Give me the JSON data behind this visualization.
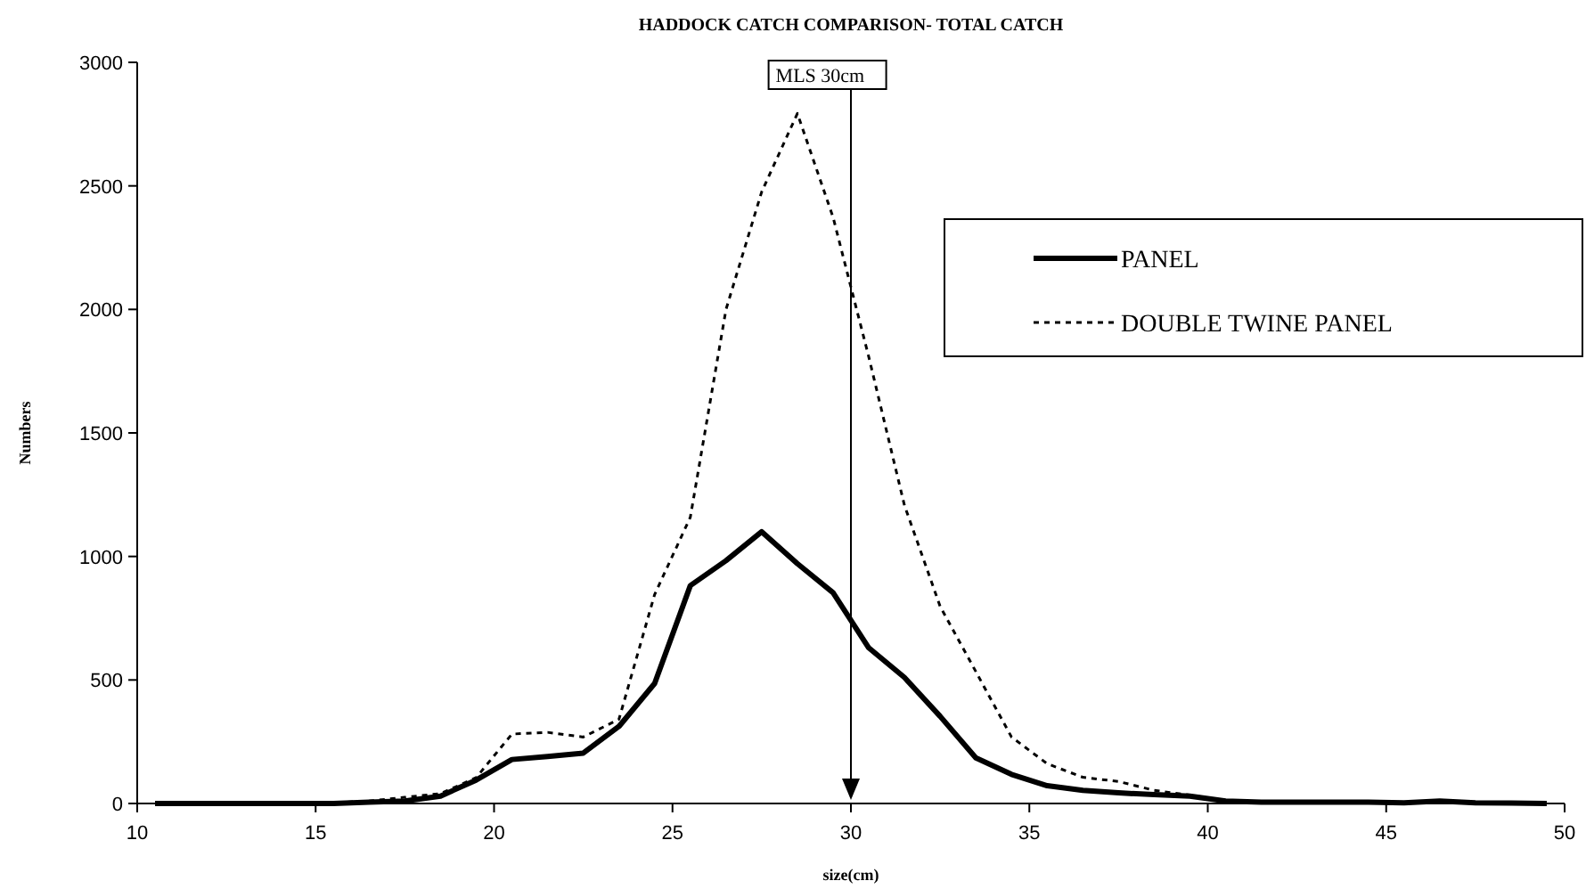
{
  "chart_data": {
    "type": "line",
    "title": "HADDOCK CATCH COMPARISON- TOTAL CATCH",
    "xlabel": "size(cm)",
    "ylabel": "Numbers",
    "x": [
      10.5,
      11.5,
      12.5,
      13.5,
      14.5,
      15.5,
      16.5,
      17.5,
      18.5,
      19.5,
      20.5,
      21.5,
      22.5,
      23.5,
      24.5,
      25.5,
      26.5,
      27.5,
      28.5,
      29.5,
      30.5,
      31.5,
      32.5,
      33.5,
      34.5,
      35.5,
      36.5,
      37.5,
      38.5,
      39.5,
      40.5,
      41.5,
      42.5,
      43.5,
      44.5,
      45.5,
      46.5,
      47.5,
      48.5,
      49.5
    ],
    "series": [
      {
        "name": "PANEL",
        "color": "#000000",
        "line_style": "solid",
        "values": [
          0,
          0,
          0,
          0,
          0,
          0,
          5,
          10,
          30,
          95,
          178,
          190,
          204,
          312,
          486,
          882,
          983,
          1100,
          971,
          853,
          630,
          510,
          353,
          185,
          118,
          72,
          53,
          43,
          36,
          30,
          10,
          5,
          5,
          5,
          5,
          3,
          10,
          3,
          2,
          0
        ]
      },
      {
        "name": "DOUBLE TWINE PANEL",
        "color": "#000000",
        "line_style": "dotted",
        "values": [
          0,
          0,
          0,
          0,
          5,
          3,
          10,
          25,
          40,
          105,
          281,
          288,
          269,
          341,
          846,
          1159,
          2000,
          2476,
          2793,
          2373,
          1808,
          1207,
          798,
          534,
          269,
          161,
          106,
          89,
          53,
          34,
          10,
          5,
          5,
          5,
          3,
          3,
          5,
          3,
          2,
          0
        ]
      }
    ],
    "xlim": [
      10,
      50
    ],
    "xticks": [
      10,
      15,
      20,
      25,
      30,
      35,
      40,
      45,
      50
    ],
    "ylim": [
      0,
      3000
    ],
    "yticks": [
      0,
      500,
      1000,
      1500,
      2000,
      2500,
      3000
    ],
    "ref_lines": [
      {
        "axis": "x",
        "value": 30,
        "label": "MLS 30cm"
      }
    ],
    "grid": false,
    "legend": "right",
    "marker": "none"
  }
}
